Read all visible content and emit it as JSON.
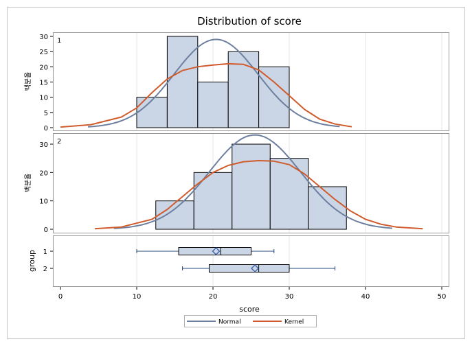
{
  "colors": {
    "bar_fill": "#CAD5E5",
    "bar_stroke": "#000000",
    "normal": "#6C7F9E",
    "kernel": "#D05B2C",
    "panel_border": "#999999",
    "frame_border": "#C8C8C8",
    "whisker": "#24497B",
    "mean_marker": "#3B5EA8"
  },
  "chart_data": {
    "type": "bar",
    "title": "Distribution of score",
    "xlabel": "score",
    "xlim": [
      -2,
      50
    ],
    "x_ticks": [
      0,
      10,
      20,
      30,
      40,
      50
    ],
    "grid": "vertical",
    "panels": [
      {
        "label": "1",
        "ylabel": "백분율",
        "ylim": [
          0,
          33
        ],
        "y_ticks": [
          0,
          5,
          10,
          15,
          20,
          25,
          30
        ],
        "bins": [
          {
            "from": 10,
            "to": 14,
            "value": 10
          },
          {
            "from": 14,
            "to": 18,
            "value": 30
          },
          {
            "from": 18,
            "to": 22,
            "value": 15
          },
          {
            "from": 22,
            "to": 26,
            "value": 25
          },
          {
            "from": 26,
            "to": 30,
            "value": 20
          }
        ],
        "normal": {
          "mean": 20.4,
          "sd": 5.5,
          "x_from": 3.6,
          "x_to": 36.6
        },
        "kernel": {
          "x": [
            0,
            4,
            8,
            10,
            12,
            14,
            16,
            18,
            20,
            22,
            24,
            26,
            28,
            30,
            32,
            34,
            36,
            38.2
          ],
          "y": [
            0.2,
            1.0,
            3.5,
            6.5,
            11.5,
            16,
            18.8,
            20,
            20.6,
            21,
            20.8,
            19,
            15,
            10.5,
            6,
            2.8,
            1.2,
            0.3
          ]
        }
      },
      {
        "label": "2",
        "ylabel": "백분율",
        "ylim": [
          0,
          33
        ],
        "y_ticks": [
          0,
          10,
          20,
          30
        ],
        "bins": [
          {
            "from": 12.5,
            "to": 17.5,
            "value": 10
          },
          {
            "from": 17.5,
            "to": 22.5,
            "value": 20
          },
          {
            "from": 22.5,
            "to": 27.5,
            "value": 30
          },
          {
            "from": 27.5,
            "to": 32.5,
            "value": 25
          },
          {
            "from": 32.5,
            "to": 37.5,
            "value": 15
          }
        ],
        "normal": {
          "mean": 25.5,
          "sd": 6.0,
          "x_from": 7,
          "x_to": 43.5
        },
        "kernel": {
          "x": [
            4.5,
            8,
            12,
            14,
            16,
            18,
            20,
            22,
            24,
            26,
            28,
            30,
            32,
            34,
            36,
            38,
            40,
            42,
            44,
            47.5
          ],
          "y": [
            0.2,
            0.8,
            3.5,
            7,
            11.5,
            16,
            20,
            22.5,
            23.8,
            24.2,
            24,
            22.8,
            19.5,
            15,
            10.5,
            6.5,
            3.5,
            1.8,
            0.8,
            0.2
          ]
        }
      }
    ],
    "box": {
      "ylabel": "group",
      "groups": [
        {
          "label": "1",
          "min": 10,
          "q1": 15.5,
          "median": 21,
          "q3": 25,
          "max": 28,
          "mean": 20.4
        },
        {
          "label": "2",
          "min": 16,
          "q1": 19.5,
          "median": 26,
          "q3": 30,
          "max": 36,
          "mean": 25.5
        }
      ]
    },
    "legend": {
      "position": "bottom-center",
      "items": [
        {
          "name": "Normal",
          "color": "#6C7F9E"
        },
        {
          "name": "Kernel",
          "color": "#D05B2C"
        }
      ]
    }
  }
}
